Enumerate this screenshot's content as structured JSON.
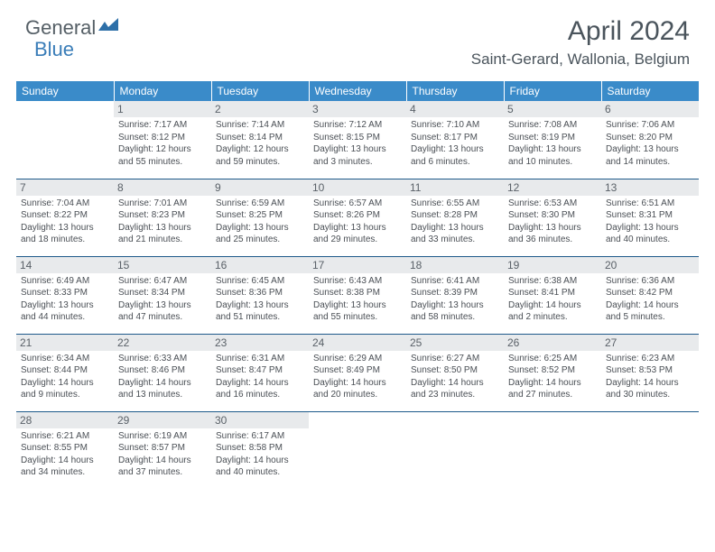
{
  "logo": {
    "text1": "General",
    "text2": "Blue"
  },
  "title": "April 2024",
  "location": "Saint-Gerard, Wallonia, Belgium",
  "weekdays": [
    "Sunday",
    "Monday",
    "Tuesday",
    "Wednesday",
    "Thursday",
    "Friday",
    "Saturday"
  ],
  "colors": {
    "header_bg": "#3a8bc9",
    "border": "#1e5a8a",
    "daynum_bg": "#e8eaec",
    "text": "#4a4f55",
    "logo_gray": "#555f66",
    "logo_blue": "#3a7db8"
  },
  "days": [
    {
      "n": "",
      "lines": []
    },
    {
      "n": "1",
      "lines": [
        "Sunrise: 7:17 AM",
        "Sunset: 8:12 PM",
        "Daylight: 12 hours",
        "and 55 minutes."
      ]
    },
    {
      "n": "2",
      "lines": [
        "Sunrise: 7:14 AM",
        "Sunset: 8:14 PM",
        "Daylight: 12 hours",
        "and 59 minutes."
      ]
    },
    {
      "n": "3",
      "lines": [
        "Sunrise: 7:12 AM",
        "Sunset: 8:15 PM",
        "Daylight: 13 hours",
        "and 3 minutes."
      ]
    },
    {
      "n": "4",
      "lines": [
        "Sunrise: 7:10 AM",
        "Sunset: 8:17 PM",
        "Daylight: 13 hours",
        "and 6 minutes."
      ]
    },
    {
      "n": "5",
      "lines": [
        "Sunrise: 7:08 AM",
        "Sunset: 8:19 PM",
        "Daylight: 13 hours",
        "and 10 minutes."
      ]
    },
    {
      "n": "6",
      "lines": [
        "Sunrise: 7:06 AM",
        "Sunset: 8:20 PM",
        "Daylight: 13 hours",
        "and 14 minutes."
      ]
    },
    {
      "n": "7",
      "lines": [
        "Sunrise: 7:04 AM",
        "Sunset: 8:22 PM",
        "Daylight: 13 hours",
        "and 18 minutes."
      ]
    },
    {
      "n": "8",
      "lines": [
        "Sunrise: 7:01 AM",
        "Sunset: 8:23 PM",
        "Daylight: 13 hours",
        "and 21 minutes."
      ]
    },
    {
      "n": "9",
      "lines": [
        "Sunrise: 6:59 AM",
        "Sunset: 8:25 PM",
        "Daylight: 13 hours",
        "and 25 minutes."
      ]
    },
    {
      "n": "10",
      "lines": [
        "Sunrise: 6:57 AM",
        "Sunset: 8:26 PM",
        "Daylight: 13 hours",
        "and 29 minutes."
      ]
    },
    {
      "n": "11",
      "lines": [
        "Sunrise: 6:55 AM",
        "Sunset: 8:28 PM",
        "Daylight: 13 hours",
        "and 33 minutes."
      ]
    },
    {
      "n": "12",
      "lines": [
        "Sunrise: 6:53 AM",
        "Sunset: 8:30 PM",
        "Daylight: 13 hours",
        "and 36 minutes."
      ]
    },
    {
      "n": "13",
      "lines": [
        "Sunrise: 6:51 AM",
        "Sunset: 8:31 PM",
        "Daylight: 13 hours",
        "and 40 minutes."
      ]
    },
    {
      "n": "14",
      "lines": [
        "Sunrise: 6:49 AM",
        "Sunset: 8:33 PM",
        "Daylight: 13 hours",
        "and 44 minutes."
      ]
    },
    {
      "n": "15",
      "lines": [
        "Sunrise: 6:47 AM",
        "Sunset: 8:34 PM",
        "Daylight: 13 hours",
        "and 47 minutes."
      ]
    },
    {
      "n": "16",
      "lines": [
        "Sunrise: 6:45 AM",
        "Sunset: 8:36 PM",
        "Daylight: 13 hours",
        "and 51 minutes."
      ]
    },
    {
      "n": "17",
      "lines": [
        "Sunrise: 6:43 AM",
        "Sunset: 8:38 PM",
        "Daylight: 13 hours",
        "and 55 minutes."
      ]
    },
    {
      "n": "18",
      "lines": [
        "Sunrise: 6:41 AM",
        "Sunset: 8:39 PM",
        "Daylight: 13 hours",
        "and 58 minutes."
      ]
    },
    {
      "n": "19",
      "lines": [
        "Sunrise: 6:38 AM",
        "Sunset: 8:41 PM",
        "Daylight: 14 hours",
        "and 2 minutes."
      ]
    },
    {
      "n": "20",
      "lines": [
        "Sunrise: 6:36 AM",
        "Sunset: 8:42 PM",
        "Daylight: 14 hours",
        "and 5 minutes."
      ]
    },
    {
      "n": "21",
      "lines": [
        "Sunrise: 6:34 AM",
        "Sunset: 8:44 PM",
        "Daylight: 14 hours",
        "and 9 minutes."
      ]
    },
    {
      "n": "22",
      "lines": [
        "Sunrise: 6:33 AM",
        "Sunset: 8:46 PM",
        "Daylight: 14 hours",
        "and 13 minutes."
      ]
    },
    {
      "n": "23",
      "lines": [
        "Sunrise: 6:31 AM",
        "Sunset: 8:47 PM",
        "Daylight: 14 hours",
        "and 16 minutes."
      ]
    },
    {
      "n": "24",
      "lines": [
        "Sunrise: 6:29 AM",
        "Sunset: 8:49 PM",
        "Daylight: 14 hours",
        "and 20 minutes."
      ]
    },
    {
      "n": "25",
      "lines": [
        "Sunrise: 6:27 AM",
        "Sunset: 8:50 PM",
        "Daylight: 14 hours",
        "and 23 minutes."
      ]
    },
    {
      "n": "26",
      "lines": [
        "Sunrise: 6:25 AM",
        "Sunset: 8:52 PM",
        "Daylight: 14 hours",
        "and 27 minutes."
      ]
    },
    {
      "n": "27",
      "lines": [
        "Sunrise: 6:23 AM",
        "Sunset: 8:53 PM",
        "Daylight: 14 hours",
        "and 30 minutes."
      ]
    },
    {
      "n": "28",
      "lines": [
        "Sunrise: 6:21 AM",
        "Sunset: 8:55 PM",
        "Daylight: 14 hours",
        "and 34 minutes."
      ]
    },
    {
      "n": "29",
      "lines": [
        "Sunrise: 6:19 AM",
        "Sunset: 8:57 PM",
        "Daylight: 14 hours",
        "and 37 minutes."
      ]
    },
    {
      "n": "30",
      "lines": [
        "Sunrise: 6:17 AM",
        "Sunset: 8:58 PM",
        "Daylight: 14 hours",
        "and 40 minutes."
      ]
    },
    {
      "n": "",
      "lines": []
    },
    {
      "n": "",
      "lines": []
    },
    {
      "n": "",
      "lines": []
    },
    {
      "n": "",
      "lines": []
    }
  ]
}
